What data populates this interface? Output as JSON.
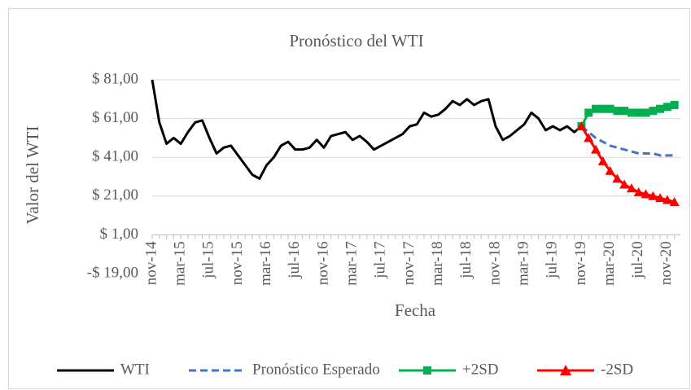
{
  "chart_data": {
    "type": "line",
    "title": "Pronóstico del WTI",
    "x_label": "Fecha",
    "y_label": "Valor del WTI",
    "categories": [
      "nov-14",
      null,
      null,
      null,
      "mar-15",
      null,
      null,
      null,
      "jul-15",
      null,
      null,
      null,
      "nov-15",
      null,
      null,
      null,
      "mar-16",
      null,
      null,
      null,
      "jul-16",
      null,
      null,
      null,
      "nov-16",
      null,
      null,
      null,
      "mar-17",
      null,
      null,
      null,
      "jul-17",
      null,
      null,
      null,
      "nov-17",
      null,
      null,
      null,
      "mar-18",
      null,
      null,
      null,
      "jul-18",
      null,
      null,
      null,
      "nov-18",
      null,
      null,
      null,
      "mar-19",
      null,
      null,
      null,
      "jul-19",
      null,
      null,
      null,
      "nov-19",
      null,
      null,
      null,
      "mar-20",
      null,
      null,
      null,
      "jul-20",
      null,
      null,
      null,
      "nov-20",
      null
    ],
    "series": [
      {
        "name": "WTI",
        "color": "#000000",
        "marker": "none",
        "dash": false,
        "values": [
          81,
          59,
          48,
          51,
          48,
          54,
          59,
          60,
          51,
          43,
          46,
          47,
          42,
          37,
          32,
          30,
          37,
          41,
          47,
          49,
          45,
          45,
          46,
          50,
          46,
          52,
          53,
          54,
          50,
          52,
          49,
          45,
          47,
          49,
          51,
          53,
          57,
          58,
          64,
          62,
          63,
          66,
          70,
          68,
          71,
          68,
          70,
          71,
          57,
          50,
          52,
          55,
          58,
          64,
          61,
          55,
          57,
          55,
          57,
          54,
          57,
          null,
          null,
          null,
          null,
          null,
          null,
          null,
          null,
          null,
          null,
          null,
          null,
          null
        ]
      },
      {
        "name": "Pronóstico Esperado",
        "color": "#4472c4",
        "marker": "none",
        "dash": true,
        "values": [
          null,
          null,
          null,
          null,
          null,
          null,
          null,
          null,
          null,
          null,
          null,
          null,
          null,
          null,
          null,
          null,
          null,
          null,
          null,
          null,
          null,
          null,
          null,
          null,
          null,
          null,
          null,
          null,
          null,
          null,
          null,
          null,
          null,
          null,
          null,
          null,
          null,
          null,
          null,
          null,
          null,
          null,
          null,
          null,
          null,
          null,
          null,
          null,
          null,
          null,
          null,
          null,
          null,
          null,
          null,
          null,
          null,
          null,
          null,
          null,
          57,
          54,
          51,
          49,
          47,
          46,
          45,
          44,
          43,
          43,
          43,
          42,
          42,
          42
        ]
      },
      {
        "name": "+2SD",
        "color": "#00b050",
        "marker": "square",
        "dash": false,
        "values": [
          null,
          null,
          null,
          null,
          null,
          null,
          null,
          null,
          null,
          null,
          null,
          null,
          null,
          null,
          null,
          null,
          null,
          null,
          null,
          null,
          null,
          null,
          null,
          null,
          null,
          null,
          null,
          null,
          null,
          null,
          null,
          null,
          null,
          null,
          null,
          null,
          null,
          null,
          null,
          null,
          null,
          null,
          null,
          null,
          null,
          null,
          null,
          null,
          null,
          null,
          null,
          null,
          null,
          null,
          null,
          null,
          null,
          null,
          null,
          null,
          57,
          64,
          66,
          66,
          66,
          65,
          65,
          64,
          64,
          64,
          65,
          66,
          67,
          68
        ]
      },
      {
        "name": "-2SD",
        "color": "#ff0000",
        "marker": "triangle",
        "dash": false,
        "values": [
          null,
          null,
          null,
          null,
          null,
          null,
          null,
          null,
          null,
          null,
          null,
          null,
          null,
          null,
          null,
          null,
          null,
          null,
          null,
          null,
          null,
          null,
          null,
          null,
          null,
          null,
          null,
          null,
          null,
          null,
          null,
          null,
          null,
          null,
          null,
          null,
          null,
          null,
          null,
          null,
          null,
          null,
          null,
          null,
          null,
          null,
          null,
          null,
          null,
          null,
          null,
          null,
          null,
          null,
          null,
          null,
          null,
          null,
          null,
          null,
          57,
          51,
          45,
          39,
          34,
          30,
          27,
          25,
          23,
          22,
          21,
          20,
          19,
          18
        ]
      }
    ],
    "ylim": [
      -19,
      81
    ],
    "yticks": [
      {
        "value": -19,
        "label": "-$ 19,00"
      },
      {
        "value": 1,
        "label": "$ 1,00"
      },
      {
        "value": 21,
        "label": "$ 21,00"
      },
      {
        "value": 41,
        "label": "$ 41,00"
      },
      {
        "value": 61,
        "label": "$ 61,00"
      },
      {
        "value": 81,
        "label": "$ 81,00"
      }
    ],
    "grid": true,
    "legend": "bottom"
  }
}
